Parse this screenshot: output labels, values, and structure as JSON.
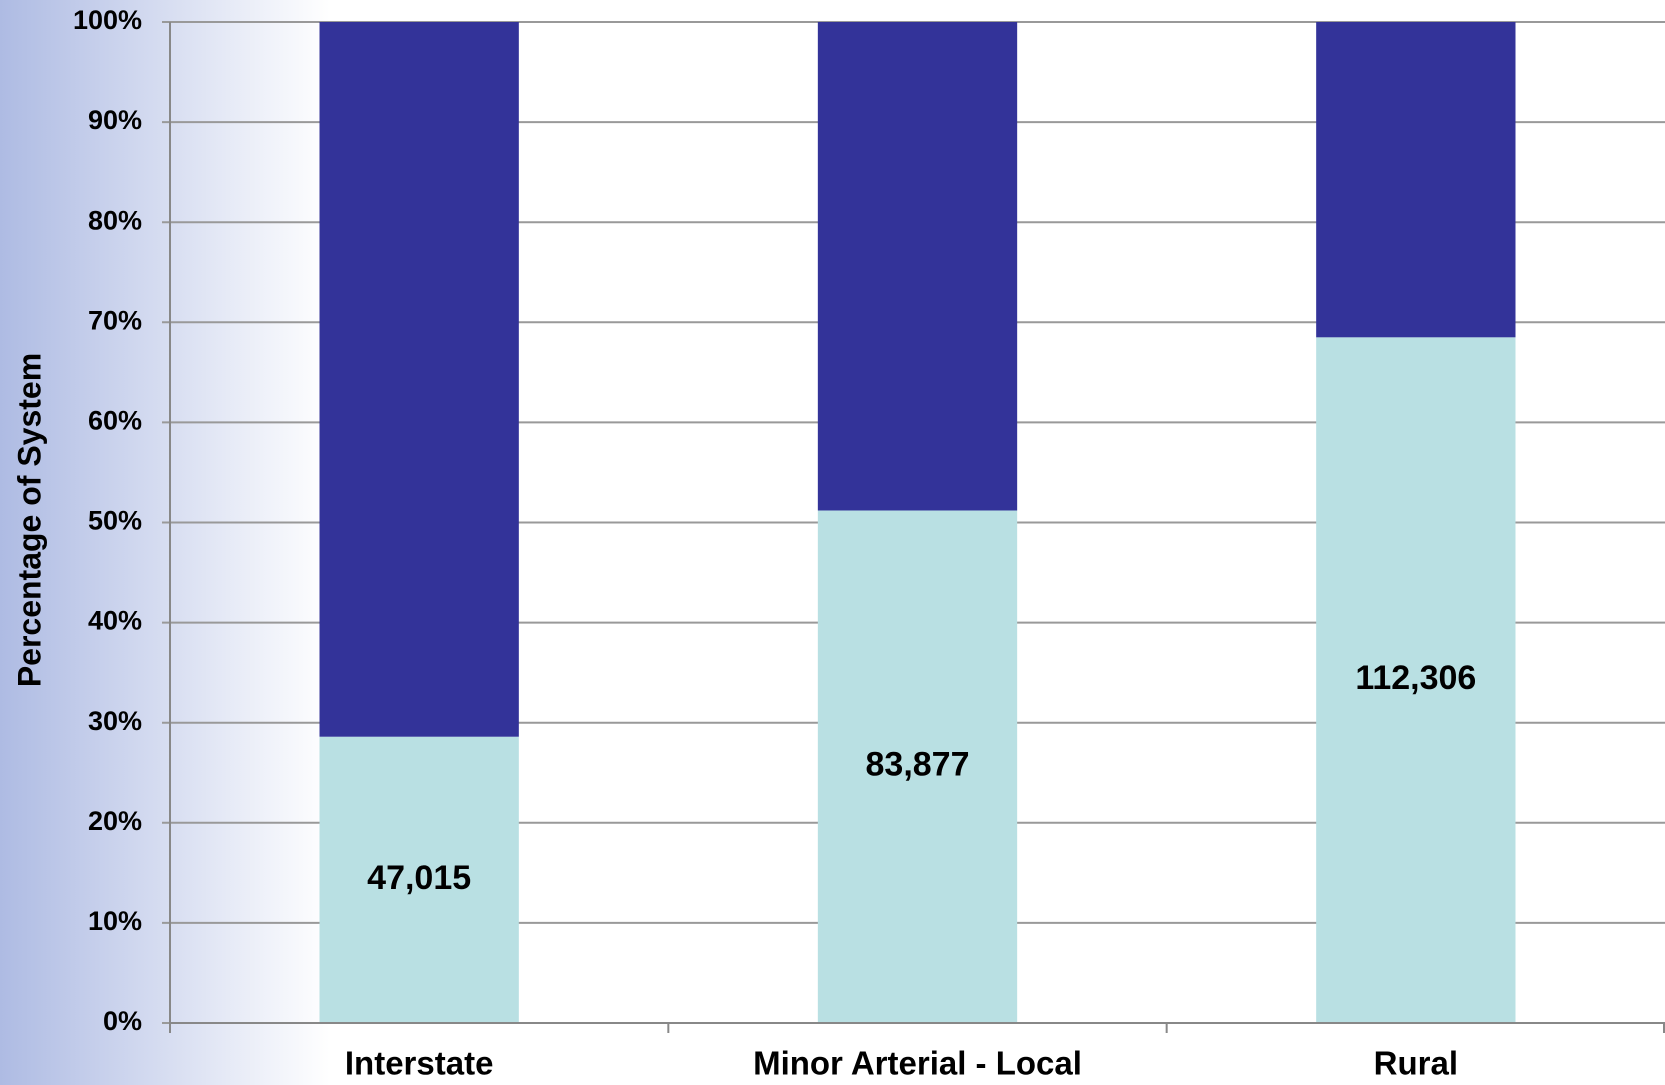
{
  "chart_data": {
    "type": "stacked_bar",
    "y_label": "Percentage of System",
    "categories": [
      "Interstate",
      "Minor Arterial - Local",
      "Rural"
    ],
    "series": [
      {
        "color": "#b9e0e3",
        "values": [
          28.6,
          51.2,
          68.5
        ]
      },
      {
        "color": "#333399",
        "values": [
          71.4,
          48.8,
          31.5
        ]
      }
    ],
    "annotations": [
      "47,015",
      "83,877",
      "112,306"
    ],
    "ylim": [
      0,
      100
    ],
    "yticks": [
      {
        "value": 0,
        "label": "0%"
      },
      {
        "value": 10,
        "label": "10%"
      },
      {
        "value": 20,
        "label": "20%"
      },
      {
        "value": 30,
        "label": "30%"
      },
      {
        "value": 40,
        "label": "40%"
      },
      {
        "value": 50,
        "label": "50%"
      },
      {
        "value": 60,
        "label": "60%"
      },
      {
        "value": 70,
        "label": "70%"
      },
      {
        "value": 80,
        "label": "80%"
      },
      {
        "value": 90,
        "label": "90%"
      },
      {
        "value": 100,
        "label": "100%"
      }
    ],
    "grid": true
  }
}
